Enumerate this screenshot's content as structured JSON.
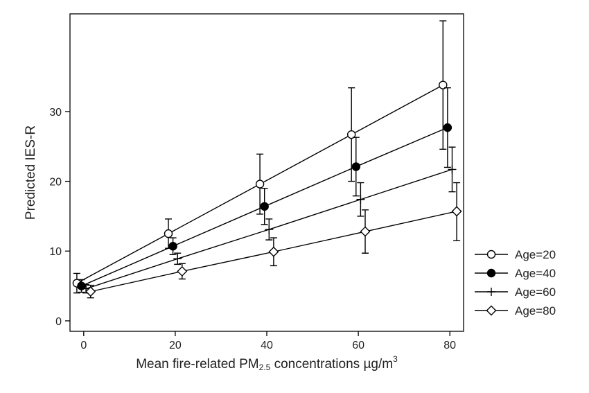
{
  "chart_data": {
    "type": "line",
    "title": "",
    "xlabel": {
      "main": "Mean fire-related PM",
      "sub": "2.5",
      "rest": " concentrations µg/m",
      "sup": "3"
    },
    "ylabel": "Predicted IES-R",
    "xlim": [
      -3,
      83
    ],
    "ylim": [
      -1.5,
      44
    ],
    "xticks": [
      0,
      20,
      40,
      60,
      80
    ],
    "xtick_labels": [
      "0",
      "20",
      "40",
      "60",
      "80"
    ],
    "yticks": [
      0,
      10,
      20,
      30
    ],
    "ytick_labels": [
      "0",
      "10",
      "20",
      "30"
    ],
    "grid": false,
    "legend_position": "right",
    "line_color": "#000000",
    "series": [
      {
        "name": "Age=20",
        "marker": "circle-open",
        "x": [
          -1.5,
          18.5,
          38.5,
          58.5,
          78.5
        ],
        "y": [
          5.4,
          12.5,
          19.6,
          26.7,
          33.8
        ],
        "ci_low": [
          4.0,
          10.4,
          15.3,
          20.0,
          24.6
        ],
        "ci_high": [
          6.8,
          14.6,
          23.9,
          33.4,
          43.0
        ]
      },
      {
        "name": "Age=40",
        "marker": "circle-filled",
        "x": [
          -0.5,
          19.5,
          39.5,
          59.5,
          79.5
        ],
        "y": [
          5.0,
          10.7,
          16.4,
          22.1,
          27.7
        ],
        "ci_low": [
          4.1,
          9.5,
          13.8,
          17.9,
          22.0
        ],
        "ci_high": [
          5.9,
          11.9,
          19.0,
          26.3,
          33.4
        ]
      },
      {
        "name": "Age=60",
        "marker": "plus",
        "x": [
          0.5,
          20.5,
          40.5,
          60.5,
          80.5
        ],
        "y": [
          4.6,
          8.9,
          13.1,
          17.4,
          21.7
        ],
        "ci_low": [
          4.0,
          8.1,
          11.6,
          15.0,
          18.5
        ],
        "ci_high": [
          5.2,
          9.7,
          14.6,
          19.8,
          24.9
        ]
      },
      {
        "name": "Age=80",
        "marker": "diamond-open",
        "x": [
          1.5,
          21.5,
          41.5,
          61.5,
          81.5
        ],
        "y": [
          4.2,
          7.1,
          9.9,
          12.8,
          15.7
        ],
        "ci_low": [
          3.3,
          6.0,
          7.9,
          9.7,
          11.5
        ],
        "ci_high": [
          5.1,
          8.2,
          11.9,
          15.9,
          19.8
        ]
      }
    ]
  }
}
